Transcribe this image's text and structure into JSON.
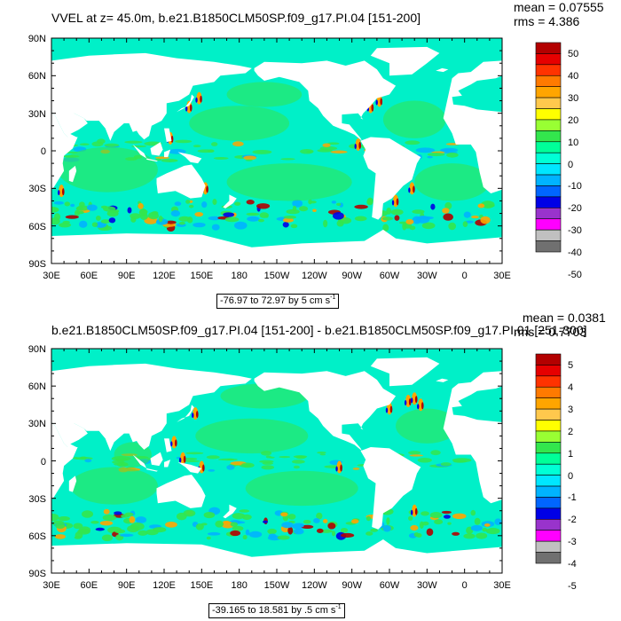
{
  "panels": [
    {
      "title": "VVEL at z=  45.0m, b.e21.B1850CLM50SP.f09_g17.PI.04 [151-200]",
      "mean": "mean = 0.07555",
      "rms": "rms = 4.386",
      "range_text": "-76.97 to 72.97 by 5 cm s",
      "range_unit_exp": "-1",
      "colorbar_labels": [
        "50",
        "40",
        "30",
        "20",
        "10",
        "0",
        "-10",
        "-20",
        "-30",
        "-40",
        "-50"
      ]
    },
    {
      "title": "b.e21.B1850CLM50SP.f09_g17.PI.04 [151-200] - b.e21.B1850CLM50SP.f09_g17.PI.01 [251-300]",
      "mean": "mean = 0.0381",
      "rms": "rms = 0.7703",
      "range_text": "-39.165 to 18.581 by .5 cm s",
      "range_unit_exp": "-1",
      "colorbar_labels": [
        "5",
        "4",
        "3",
        "2",
        "1",
        "0",
        "-1",
        "-2",
        "-3",
        "-4",
        "-5"
      ]
    }
  ],
  "lat_labels": [
    "90N",
    "60N",
    "30N",
    "0",
    "30S",
    "60S",
    "90S"
  ],
  "lon_labels": [
    "30E",
    "60E",
    "90E",
    "120E",
    "150E",
    "180",
    "150W",
    "120W",
    "90W",
    "60W",
    "30W",
    "0",
    "30E"
  ],
  "colorbar_colors": [
    "#b30000",
    "#e60000",
    "#ff3300",
    "#ff7a00",
    "#ffa500",
    "#ffc84d",
    "#ffff00",
    "#99ff33",
    "#33e64d",
    "#00ff99",
    "#00ffd5",
    "#00e6ff",
    "#00b3ff",
    "#0066ff",
    "#0000e6",
    "#9933cc",
    "#ff00ff",
    "#c0c0c0",
    "#707070"
  ],
  "map_colors": {
    "ocean": "#00f0c8",
    "land": "#ffffff",
    "positive": "#33e64d",
    "strong_pos": "#ffa500",
    "extreme_pos": "#b30000",
    "negative": "#00b3ff",
    "strong_neg": "#0000e6"
  }
}
